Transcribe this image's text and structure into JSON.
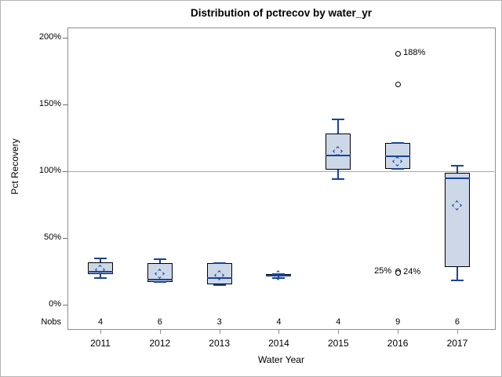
{
  "figure": {
    "title": "Distribution of pctrecov by water_yr"
  },
  "chart_data": {
    "type": "box",
    "title": "Distribution of pctrecov by water_yr",
    "xlabel": "Water Year",
    "ylabel": "Pct Recovery",
    "categories": [
      "2011",
      "2012",
      "2013",
      "2014",
      "2015",
      "2016",
      "2017"
    ],
    "nobs_label": "Nobs",
    "nobs": [
      4,
      6,
      3,
      4,
      4,
      9,
      6
    ],
    "yticks": [
      {
        "value": 0,
        "label": "0%"
      },
      {
        "value": 50,
        "label": "50%"
      },
      {
        "value": 100,
        "label": "100%"
      },
      {
        "value": 150,
        "label": "150%"
      },
      {
        "value": 200,
        "label": "200%"
      }
    ],
    "ylim": [
      -18,
      208
    ],
    "reference_line": 100,
    "grid": false,
    "legend": "none",
    "series": [
      {
        "category": "2011",
        "n": 4,
        "min": 20,
        "q1": 23,
        "median": 25,
        "q3": 32,
        "max": 35,
        "mean": 26,
        "outliers": []
      },
      {
        "category": "2012",
        "n": 6,
        "min": 17,
        "q1": 17,
        "median": 19,
        "q3": 31,
        "max": 34,
        "mean": 23,
        "outliers": []
      },
      {
        "category": "2013",
        "n": 3,
        "min": 15,
        "q1": 15,
        "median": 20,
        "q3": 31,
        "max": 31,
        "mean": 22,
        "outliers": []
      },
      {
        "category": "2014",
        "n": 4,
        "min": 20,
        "q1": 21,
        "median": 22,
        "q3": 23,
        "max": 23,
        "mean": 22,
        "outliers": []
      },
      {
        "category": "2015",
        "n": 4,
        "min": 94,
        "q1": 101,
        "median": 112,
        "q3": 128,
        "max": 139,
        "mean": 115,
        "outliers": []
      },
      {
        "category": "2016",
        "n": 9,
        "min": 102,
        "q1": 102,
        "median": 111,
        "q3": 121,
        "max": 121,
        "mean": 107,
        "outliers": [
          {
            "value": 188,
            "label": "188%",
            "label_side": "right"
          },
          {
            "value": 165,
            "label": null,
            "label_side": "right"
          },
          {
            "value": 25,
            "label": "25%",
            "label_side": "left"
          },
          {
            "value": 24,
            "label": "24%",
            "label_side": "right"
          }
        ]
      },
      {
        "category": "2017",
        "n": 6,
        "min": 18,
        "q1": 28,
        "median": 95,
        "q3": 99,
        "max": 104,
        "mean": 74,
        "outliers": []
      }
    ],
    "colors": {
      "box_fill": "#ccd7e8",
      "box_border": "#000000",
      "line": "#1a4596",
      "outlier_stroke": "#000000",
      "reference": "#a8a8a8",
      "frame": "#8e8e8e",
      "tick": "#707070"
    }
  }
}
